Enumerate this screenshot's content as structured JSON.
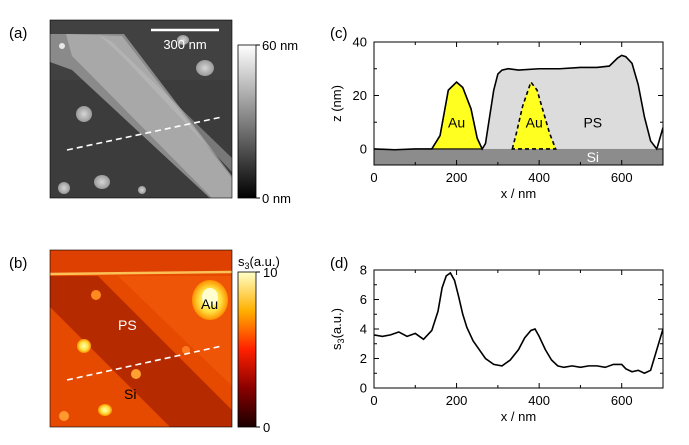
{
  "figure": {
    "panel_a": {
      "label": "(a)",
      "scalebar": "300 nm",
      "colorbar_top": "60 nm",
      "colorbar_bottom": "0 nm"
    },
    "panel_b": {
      "label": "(b)",
      "colorbar_title": "s",
      "colorbar_title_sub": "3",
      "colorbar_title_unit": "(a.u.)",
      "colorbar_top": "10",
      "colorbar_bottom": "0",
      "region_ps": "PS",
      "region_au": "Au",
      "region_si": "Si"
    },
    "panel_c": {
      "label": "(c)",
      "region_au_left": "Au",
      "region_au_right": "Au",
      "region_ps": "PS",
      "region_si": "Si"
    },
    "panel_d": {
      "label": "(d)"
    }
  },
  "colors": {
    "gold": "#ffff20",
    "ps": "#dcdcdc",
    "si": "#8c8c8c",
    "line": "#000000"
  },
  "chart_data": [
    {
      "type": "line",
      "panel": "(c)",
      "xlabel": "x / nm",
      "ylabel": "z (nm)",
      "xlim": [
        0,
        700
      ],
      "ylim": [
        -6,
        40
      ],
      "xticks": [
        0,
        200,
        400,
        600
      ],
      "yticks": [
        0,
        20,
        40
      ],
      "grid": false,
      "series": [
        {
          "x": [
            0,
            50,
            100,
            140,
            160,
            180,
            200,
            215,
            235,
            250,
            262,
            270,
            280,
            290,
            300,
            310,
            325,
            350,
            400,
            450,
            500,
            540,
            570,
            590,
            600,
            610,
            625,
            640,
            655,
            670,
            685,
            700
          ],
          "y": [
            0,
            -0.3,
            0,
            0,
            5,
            22,
            25,
            23,
            15,
            4,
            0,
            2,
            12,
            22,
            28,
            29.5,
            30,
            29.5,
            30,
            30,
            30.5,
            30.5,
            31,
            34,
            35,
            34.5,
            32,
            24,
            12,
            3,
            0,
            8
          ]
        }
      ],
      "fills": {
        "au_left_x": [
          140,
          160,
          180,
          200,
          215,
          235,
          250,
          262
        ],
        "au_left_y": [
          0,
          5,
          22,
          25,
          23,
          15,
          4,
          0
        ],
        "au_right_x": [
          335,
          345,
          360,
          380,
          395,
          410,
          425,
          440
        ],
        "au_right_y": [
          0,
          6,
          16,
          25,
          22,
          14,
          6,
          0
        ]
      }
    },
    {
      "type": "line",
      "panel": "(d)",
      "xlabel": "x / nm",
      "ylabel": "s3(a.u.)",
      "xlim": [
        0,
        700
      ],
      "ylim": [
        0,
        8
      ],
      "xticks": [
        0,
        200,
        400,
        600
      ],
      "yticks": [
        0,
        2,
        4,
        6,
        8
      ],
      "grid": false,
      "series": [
        {
          "x": [
            0,
            20,
            40,
            60,
            80,
            100,
            120,
            140,
            155,
            165,
            175,
            185,
            195,
            205,
            215,
            225,
            240,
            255,
            270,
            290,
            310,
            330,
            350,
            365,
            380,
            390,
            400,
            415,
            430,
            445,
            460,
            480,
            500,
            520,
            540,
            560,
            580,
            600,
            610,
            625,
            640,
            655,
            670,
            685,
            700
          ],
          "y": [
            3.6,
            3.5,
            3.6,
            3.8,
            3.5,
            3.7,
            3.3,
            3.9,
            5.2,
            6.8,
            7.6,
            7.8,
            7.3,
            6.2,
            5.0,
            4.1,
            3.2,
            2.6,
            2.0,
            1.6,
            1.5,
            1.9,
            2.6,
            3.4,
            3.9,
            4.0,
            3.5,
            2.6,
            1.9,
            1.5,
            1.4,
            1.5,
            1.4,
            1.5,
            1.5,
            1.4,
            1.6,
            1.6,
            1.3,
            1.1,
            1.2,
            1.0,
            1.2,
            2.6,
            4.0
          ]
        }
      ]
    }
  ]
}
